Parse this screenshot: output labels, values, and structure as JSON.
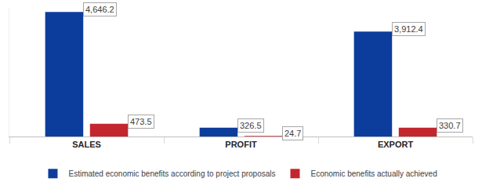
{
  "chart_data": {
    "type": "bar",
    "categories": [
      "SALES",
      "PROFIT",
      "EXPORT"
    ],
    "series": [
      {
        "name": "Estimated economic benefits according to project proposals",
        "color": "#0d3d9c",
        "values": [
          4646.2,
          326.5,
          3912.4
        ],
        "value_labels": [
          "4,646.2",
          "326.5",
          "3,912.4"
        ]
      },
      {
        "name": "Economic benefits actually achieved",
        "color": "#c3262e",
        "values": [
          473.5,
          24.7,
          330.7
        ],
        "value_labels": [
          "473.5",
          "24.7",
          "330.7"
        ]
      }
    ],
    "ylim": [
      0,
      4800
    ],
    "yticks": [],
    "grid": false,
    "legend": "bottom",
    "data_labels": true,
    "tick_labels": "x"
  }
}
